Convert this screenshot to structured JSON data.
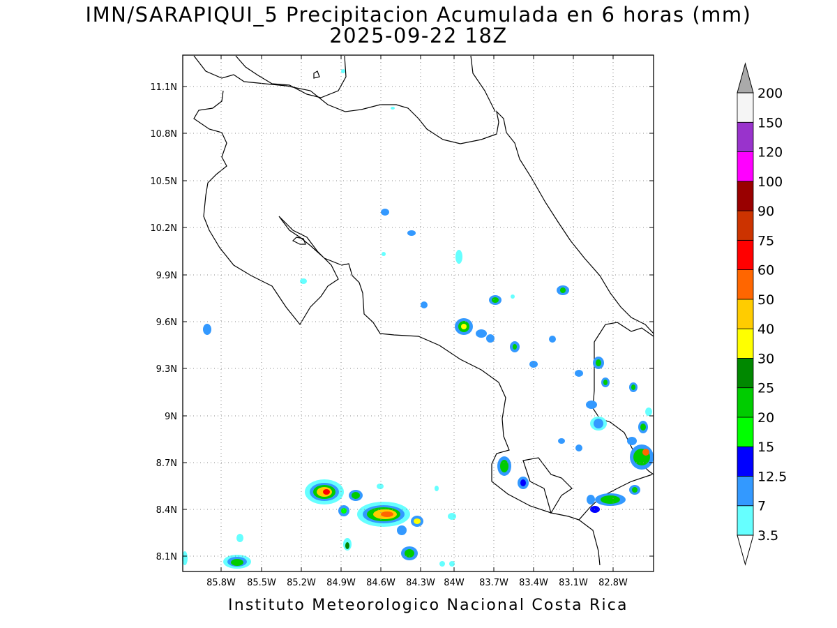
{
  "title_line1": "IMN/SARAPIQUI_5 Precipitacion Acumulada en 6 horas (mm)",
  "title_line2": "2025-09-22 18Z",
  "footer": "Instituto Meteorologico Nacional Costa Rica",
  "map": {
    "lon_range": [
      -86.1,
      -82.45
    ],
    "lat_range": [
      8.0,
      11.3
    ],
    "lon_ticks": [
      "85.8W",
      "85.5W",
      "85.2W",
      "84.9W",
      "84.6W",
      "84.3W",
      "84W",
      "83.7W",
      "83.4W",
      "83.1W",
      "82.8W"
    ],
    "lat_ticks": [
      "8.1N",
      "8.4N",
      "8.7N",
      "9N",
      "9.3N",
      "9.6N",
      "9.9N",
      "10.2N",
      "10.5N",
      "10.8N",
      "11.1N"
    ],
    "grid": "dotted"
  },
  "colorbar": {
    "levels": [
      "3.5",
      "7",
      "12.5",
      "15",
      "20",
      "25",
      "30",
      "40",
      "50",
      "60",
      "75",
      "90",
      "100",
      "120",
      "150",
      "200"
    ],
    "colors": [
      "#66ffff",
      "#3399ff",
      "#0000ff",
      "#00ff00",
      "#00cc00",
      "#008800",
      "#ffff00",
      "#ffcc00",
      "#ff6600",
      "#ff0000",
      "#cc3300",
      "#990000",
      "#ff00ff",
      "#9933cc",
      "#f5f5f5",
      "#aaaaaa"
    ]
  }
}
